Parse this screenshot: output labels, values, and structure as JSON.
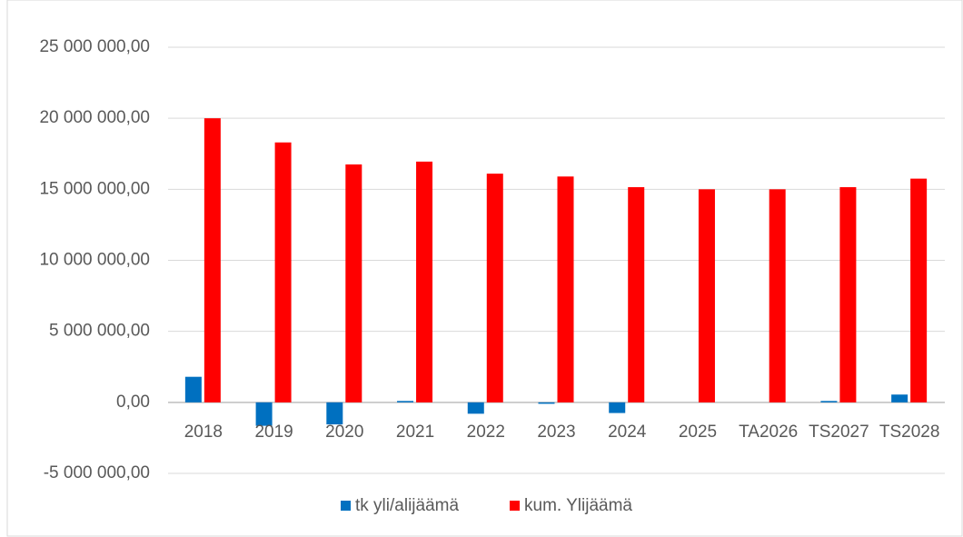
{
  "chart_data": {
    "type": "bar",
    "categories": [
      "2018",
      "2019",
      "2020",
      "2021",
      "2022",
      "2023",
      "2024",
      "2025",
      "TA2026",
      "TS2027",
      "TS2028"
    ],
    "series": [
      {
        "name": "tk yli/alijäämä",
        "color": "#0070c0",
        "values": [
          1800000,
          -1650000,
          -1550000,
          100000,
          -800000,
          -100000,
          -750000,
          0,
          0,
          100000,
          550000
        ]
      },
      {
        "name": "kum. Ylijäämä",
        "color": "#ff0000",
        "values": [
          20000000,
          18300000,
          16750000,
          16950000,
          16100000,
          15900000,
          15150000,
          15000000,
          15000000,
          15150000,
          15750000
        ]
      }
    ],
    "ylim": [
      -5000000,
      25000000
    ],
    "yticks": [
      {
        "value": -5000000,
        "label": "-5 000 000,00"
      },
      {
        "value": 0,
        "label": "0,00"
      },
      {
        "value": 5000000,
        "label": "5 000 000,00"
      },
      {
        "value": 10000000,
        "label": "10 000 000,00"
      },
      {
        "value": 15000000,
        "label": "15 000 000,00"
      },
      {
        "value": 20000000,
        "label": "20 000 000,00"
      },
      {
        "value": 25000000,
        "label": "25 000 000,00"
      }
    ],
    "grid": true,
    "legend": "bottom"
  }
}
